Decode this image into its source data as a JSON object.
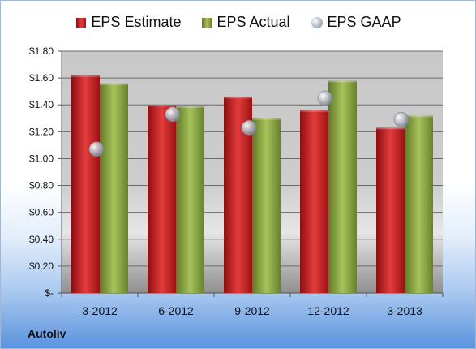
{
  "company": "Autoliv",
  "chart_data": {
    "type": "bar",
    "title": "",
    "xlabel": "",
    "ylabel": "",
    "categories": [
      "3-2012",
      "6-2012",
      "9-2012",
      "12-2012",
      "3-2013"
    ],
    "series": [
      {
        "name": "EPS Estimate",
        "kind": "bar",
        "color": "#c8201f",
        "values": [
          1.62,
          1.4,
          1.46,
          1.36,
          1.23
        ]
      },
      {
        "name": "EPS Actual",
        "kind": "bar",
        "color": "#8bab45",
        "values": [
          1.56,
          1.39,
          1.3,
          1.58,
          1.32
        ]
      },
      {
        "name": "EPS GAAP",
        "kind": "scatter",
        "color": "#a7b0ba",
        "values": [
          1.07,
          1.33,
          1.23,
          1.45,
          1.29
        ]
      }
    ],
    "ylim": [
      0,
      1.8
    ],
    "yticks": [
      0,
      0.2,
      0.4,
      0.6,
      0.8,
      1.0,
      1.2,
      1.4,
      1.6,
      1.8
    ],
    "ytick_labels": [
      "$-",
      "$0.20",
      "$0.40",
      "$0.60",
      "$0.80",
      "$1.00",
      "$1.20",
      "$1.40",
      "$1.60",
      "$1.80"
    ],
    "grid": true,
    "legend": "top"
  }
}
